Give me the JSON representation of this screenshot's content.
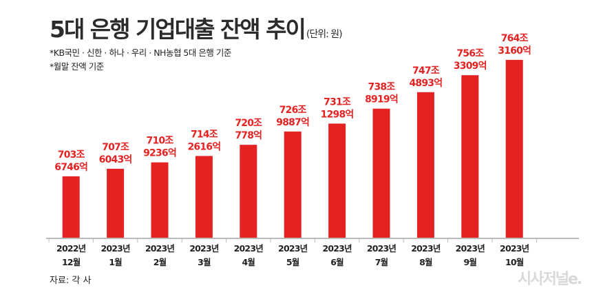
{
  "title": "5대 은행 기업대출 잔액 추이",
  "unit": "(단위: 원)",
  "notes": [
    "*KB국민 · 신한 · 하나 · 우리 · NH농협 5대 은행 기준",
    "*월말 잔액 기준"
  ],
  "source": "자료: 각 사",
  "watermark": "시사저널e.",
  "colors": {
    "bar": "#e52222",
    "axis": "#bbbbbb",
    "text": "#2b2b2b"
  },
  "chart_data": {
    "type": "bar",
    "title": "5대 은행 기업대출 잔액 추이",
    "unit": "(단위: 원)",
    "categories": [
      [
        "2022년",
        "12월"
      ],
      [
        "2023년",
        "1월"
      ],
      [
        "2023년",
        "2월"
      ],
      [
        "2023년",
        "3월"
      ],
      [
        "2023년",
        "4월"
      ],
      [
        "2023년",
        "5월"
      ],
      [
        "2023년",
        "6월"
      ],
      [
        "2023년",
        "7월"
      ],
      [
        "2023년",
        "8월"
      ],
      [
        "2023년",
        "9월"
      ],
      [
        "2023년",
        "10월"
      ]
    ],
    "values_jo": [
      703.6746,
      707.6043,
      710.9236,
      714.2616,
      720.0778,
      726.9887,
      731.1298,
      738.8919,
      747.4893,
      756.3309,
      764.316
    ],
    "data_labels": [
      [
        "703조",
        "6746억"
      ],
      [
        "707조",
        "6043억"
      ],
      [
        "710조",
        "9236억"
      ],
      [
        "714조",
        "2616억"
      ],
      [
        "720조",
        "778억"
      ],
      [
        "726조",
        "9887억"
      ],
      [
        "731조",
        "1298억"
      ],
      [
        "738조",
        "8919억"
      ],
      [
        "747조",
        "4893억"
      ],
      [
        "756조",
        "3309억"
      ],
      [
        "764조",
        "3160억"
      ]
    ],
    "grid": false,
    "legend": "none"
  }
}
